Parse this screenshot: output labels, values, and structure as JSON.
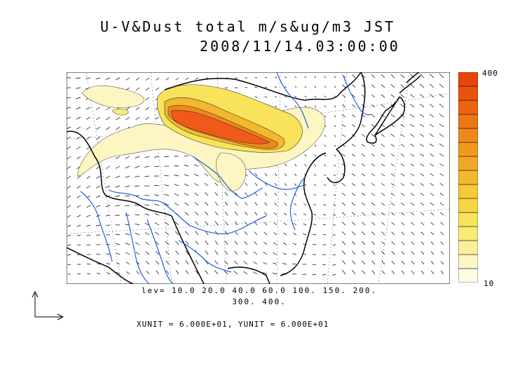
{
  "title": {
    "line1": "U-V&Dust total m/s&ug/m3 JST",
    "line2": "2008/11/14.03:00:00"
  },
  "colorbar": {
    "max_label": "400",
    "min_label": "10",
    "colors": [
      "#fefbe6",
      "#fdf5c4",
      "#fbef9c",
      "#faea78",
      "#f9e35a",
      "#f7d646",
      "#f6c83a",
      "#f4b82f",
      "#f2a827",
      "#f0981f",
      "#ef8819",
      "#ed7614",
      "#eb6510",
      "#e9540c",
      "#e74509"
    ]
  },
  "footer": {
    "levels_line1": "lev= 10.0 20.0 40.0 60.0 100. 150. 200.",
    "levels_line2": "300. 400.",
    "units": "XUNIT = 6.000E+01, YUNIT = 6.000E+01"
  },
  "map": {
    "coast_color": "#000000",
    "river_color": "#1f5fe0",
    "dust_low_color": "#fdf6c2",
    "dust_high_color": "#ef5a1a"
  }
}
